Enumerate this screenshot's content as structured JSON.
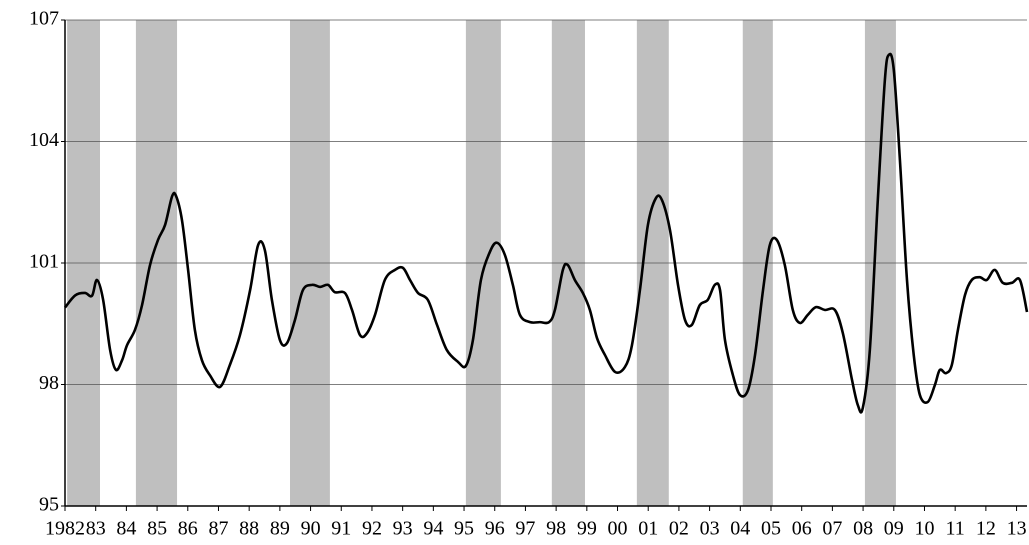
{
  "chart_data": {
    "type": "line",
    "x": [
      1982.0,
      1982.33,
      1982.65,
      1982.88,
      1983.04,
      1983.24,
      1983.47,
      1983.66,
      1983.86,
      1984.02,
      1984.28,
      1984.51,
      1984.77,
      1985.03,
      1985.26,
      1985.49,
      1985.62,
      1985.81,
      1986.01,
      1986.23,
      1986.46,
      1986.72,
      1987.05,
      1987.37,
      1987.7,
      1988.03,
      1988.29,
      1988.51,
      1988.74,
      1989.0,
      1989.23,
      1989.49,
      1989.75,
      1990.05,
      1990.31,
      1990.57,
      1990.79,
      1991.12,
      1991.35,
      1991.61,
      1991.84,
      1992.1,
      1992.42,
      1992.75,
      1993.01,
      1993.24,
      1993.5,
      1993.82,
      1994.12,
      1994.44,
      1994.8,
      1995.06,
      1995.29,
      1995.55,
      1995.84,
      1996.07,
      1996.33,
      1996.59,
      1996.82,
      1997.15,
      1997.47,
      1997.77,
      1997.96,
      1998.22,
      1998.38,
      1998.61,
      1998.87,
      1999.1,
      1999.33,
      1999.59,
      1999.92,
      2000.24,
      2000.47,
      2000.73,
      2000.99,
      2001.25,
      2001.45,
      2001.71,
      2001.97,
      2002.2,
      2002.42,
      2002.68,
      2002.94,
      2003.17,
      2003.34,
      2003.5,
      2003.76,
      2003.99,
      2004.25,
      2004.48,
      2004.74,
      2004.96,
      2005.19,
      2005.45,
      2005.71,
      2005.94,
      2006.2,
      2006.46,
      2006.76,
      2007.08,
      2007.34,
      2007.64,
      2007.83,
      2007.99,
      2008.22,
      2008.48,
      2008.71,
      2008.84,
      2009.0,
      2009.2,
      2009.43,
      2009.65,
      2009.85,
      2010.11,
      2010.34,
      2010.5,
      2010.7,
      2010.89,
      2011.09,
      2011.32,
      2011.54,
      2011.8,
      2012.03,
      2012.29,
      2012.55,
      2012.85,
      2013.11,
      2013.34
    ],
    "series": [
      {
        "color": "#000000",
        "values": [
          99.9,
          100.2,
          100.26,
          100.19,
          100.58,
          100.1,
          98.85,
          98.36,
          98.6,
          98.97,
          99.35,
          99.96,
          100.95,
          101.57,
          101.94,
          102.65,
          102.65,
          102.06,
          100.83,
          99.35,
          98.6,
          98.23,
          97.94,
          98.48,
          99.22,
          100.33,
          101.44,
          101.32,
          100.09,
          99.1,
          99.02,
          99.59,
          100.33,
          100.46,
          100.41,
          100.46,
          100.28,
          100.26,
          99.84,
          99.22,
          99.27,
          99.72,
          100.58,
          100.83,
          100.88,
          100.58,
          100.26,
          100.09,
          99.47,
          98.85,
          98.56,
          98.46,
          99.1,
          100.58,
          101.27,
          101.5,
          101.2,
          100.46,
          99.72,
          99.54,
          99.54,
          99.54,
          99.84,
          100.83,
          100.95,
          100.58,
          100.26,
          99.84,
          99.15,
          98.73,
          98.31,
          98.43,
          98.97,
          100.33,
          101.94,
          102.6,
          102.55,
          101.81,
          100.46,
          99.59,
          99.47,
          99.96,
          100.09,
          100.46,
          100.33,
          99.1,
          98.23,
          97.74,
          97.86,
          98.73,
          100.33,
          101.44,
          101.57,
          100.95,
          99.84,
          99.52,
          99.72,
          99.91,
          99.84,
          99.84,
          99.27,
          98.11,
          97.49,
          97.42,
          98.85,
          102.56,
          105.52,
          106.14,
          105.77,
          103.54,
          100.58,
          98.73,
          97.74,
          97.57,
          97.99,
          98.36,
          98.28,
          98.48,
          99.35,
          100.21,
          100.58,
          100.65,
          100.58,
          100.83,
          100.51,
          100.51,
          100.58,
          99.79
        ]
      }
    ],
    "shaded_periods": [
      [
        1982.07,
        1983.14
      ],
      [
        1984.31,
        1985.65
      ],
      [
        1989.33,
        1990.63
      ],
      [
        1995.06,
        1996.2
      ],
      [
        1997.86,
        1998.94
      ],
      [
        2000.63,
        2001.67
      ],
      [
        2004.08,
        2005.06
      ],
      [
        2008.06,
        2009.07
      ]
    ],
    "shade_color": "#bfbfbf",
    "xlim": [
      1982,
      2013.34
    ],
    "xticks": [
      {
        "value": 1982,
        "label": "1982"
      },
      {
        "value": 1983,
        "label": "83"
      },
      {
        "value": 1984,
        "label": "84"
      },
      {
        "value": 1985,
        "label": "85"
      },
      {
        "value": 1986,
        "label": "86"
      },
      {
        "value": 1987,
        "label": "87"
      },
      {
        "value": 1988,
        "label": "88"
      },
      {
        "value": 1989,
        "label": "89"
      },
      {
        "value": 1990,
        "label": "90"
      },
      {
        "value": 1991,
        "label": "91"
      },
      {
        "value": 1992,
        "label": "92"
      },
      {
        "value": 1993,
        "label": "93"
      },
      {
        "value": 1994,
        "label": "94"
      },
      {
        "value": 1995,
        "label": "95"
      },
      {
        "value": 1996,
        "label": "96"
      },
      {
        "value": 1997,
        "label": "97"
      },
      {
        "value": 1998,
        "label": "98"
      },
      {
        "value": 1999,
        "label": "99"
      },
      {
        "value": 2000,
        "label": "00"
      },
      {
        "value": 2001,
        "label": "01"
      },
      {
        "value": 2002,
        "label": "02"
      },
      {
        "value": 2003,
        "label": "03"
      },
      {
        "value": 2004,
        "label": "04"
      },
      {
        "value": 2005,
        "label": "05"
      },
      {
        "value": 2006,
        "label": "06"
      },
      {
        "value": 2007,
        "label": "07"
      },
      {
        "value": 2008,
        "label": "08"
      },
      {
        "value": 2009,
        "label": "09"
      },
      {
        "value": 2010,
        "label": "10"
      },
      {
        "value": 2011,
        "label": "11"
      },
      {
        "value": 2012,
        "label": "12"
      },
      {
        "value": 2013,
        "label": "13"
      }
    ],
    "ylim": [
      95,
      107
    ],
    "yticks": [
      95,
      98,
      101,
      104,
      107
    ],
    "grid": true
  }
}
